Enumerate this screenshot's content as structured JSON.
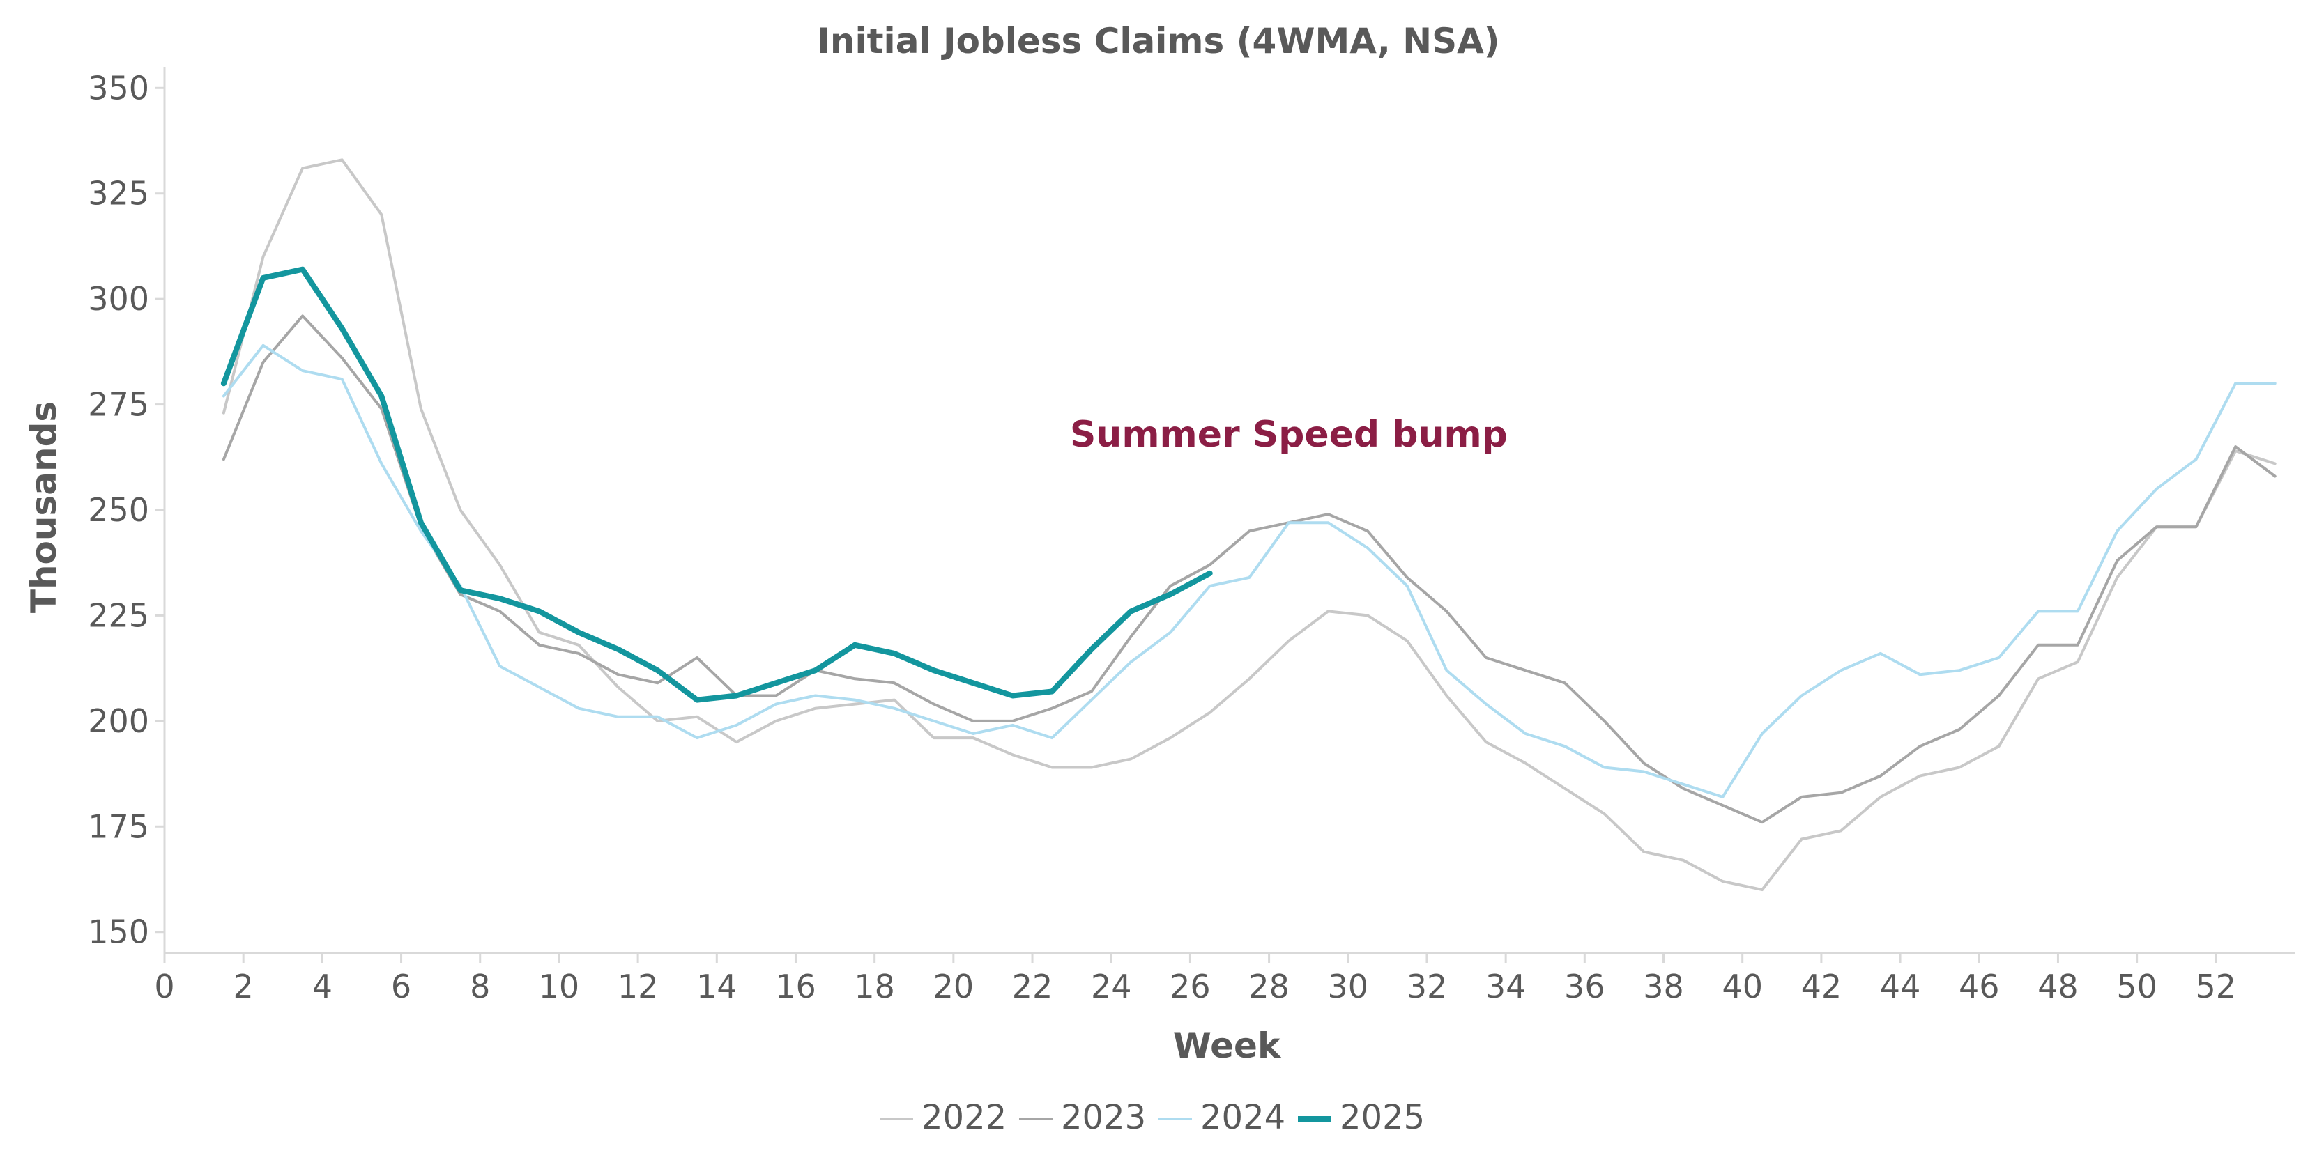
{
  "chart_data": {
    "type": "line",
    "title": "Initial Jobless Claims (4WMA, NSA)",
    "xlabel": "Week",
    "ylabel": "Thousands",
    "xlim": [
      0,
      54
    ],
    "ylim": [
      145,
      355
    ],
    "x_ticks": [
      0,
      2,
      4,
      6,
      8,
      10,
      12,
      14,
      16,
      18,
      20,
      22,
      24,
      26,
      28,
      30,
      32,
      34,
      36,
      38,
      40,
      42,
      44,
      46,
      48,
      50,
      52
    ],
    "y_ticks": [
      150,
      175,
      200,
      225,
      250,
      275,
      300,
      325,
      350
    ],
    "grid": false,
    "legend_position": "bottom-center",
    "annotation": {
      "text": "Summer Speed bump",
      "x": 28.5,
      "y": 265,
      "color": "#8B1E45"
    },
    "series": [
      {
        "name": "2022",
        "color": "#C8C8C8",
        "width": 4,
        "x": [
          1.5,
          2.5,
          3.5,
          4.5,
          5.5,
          6.5,
          7.5,
          8.5,
          9.5,
          10.5,
          11.5,
          12.5,
          13.5,
          14.5,
          15.5,
          16.5,
          17.5,
          18.5,
          19.5,
          20.5,
          21.5,
          22.5,
          23.5,
          24.5,
          25.5,
          26.5,
          27.5,
          28.5,
          29.5,
          30.5,
          31.5,
          32.5,
          33.5,
          34.5,
          35.5,
          36.5,
          37.5,
          38.5,
          39.5,
          40.5,
          41.5,
          42.5,
          43.5,
          44.5,
          45.5,
          46.5,
          47.5,
          48.5,
          49.5,
          50.5,
          51.5,
          52.5,
          53.5
        ],
        "values": [
          273,
          310,
          331,
          333,
          320,
          274,
          250,
          237,
          221,
          218,
          208,
          200,
          201,
          195,
          200,
          203,
          204,
          205,
          196,
          196,
          192,
          189,
          189,
          191,
          196,
          202,
          210,
          219,
          226,
          225,
          219,
          206,
          195,
          190,
          184,
          178,
          169,
          167,
          162,
          160,
          172,
          174,
          182,
          187,
          189,
          194,
          210,
          214,
          234,
          246,
          246,
          264,
          261
        ]
      },
      {
        "name": "2023",
        "color": "#A6A6A6",
        "width": 4,
        "x": [
          1.5,
          2.5,
          3.5,
          4.5,
          5.5,
          6.5,
          7.5,
          8.5,
          9.5,
          10.5,
          11.5,
          12.5,
          13.5,
          14.5,
          15.5,
          16.5,
          17.5,
          18.5,
          19.5,
          20.5,
          21.5,
          22.5,
          23.5,
          24.5,
          25.5,
          26.5,
          27.5,
          28.5,
          29.5,
          30.5,
          31.5,
          32.5,
          33.5,
          34.5,
          35.5,
          36.5,
          37.5,
          38.5,
          39.5,
          40.5,
          41.5,
          42.5,
          43.5,
          44.5,
          45.5,
          46.5,
          47.5,
          48.5,
          49.5,
          50.5,
          51.5,
          52.5,
          53.5
        ],
        "values": [
          262,
          285,
          296,
          286,
          274,
          246,
          230,
          226,
          218,
          216,
          211,
          209,
          215,
          206,
          206,
          212,
          210,
          209,
          204,
          200,
          200,
          203,
          207,
          220,
          232,
          237,
          245,
          247,
          249,
          245,
          234,
          226,
          215,
          212,
          209,
          200,
          190,
          184,
          180,
          176,
          182,
          183,
          187,
          194,
          198,
          206,
          218,
          218,
          238,
          246,
          246,
          265,
          258
        ]
      },
      {
        "name": "2024",
        "color": "#AEDCF0",
        "width": 4,
        "x": [
          1.5,
          2.5,
          3.5,
          4.5,
          5.5,
          6.5,
          7.5,
          8.5,
          9.5,
          10.5,
          11.5,
          12.5,
          13.5,
          14.5,
          15.5,
          16.5,
          17.5,
          18.5,
          19.5,
          20.5,
          21.5,
          22.5,
          23.5,
          24.5,
          25.5,
          26.5,
          27.5,
          28.5,
          29.5,
          30.5,
          31.5,
          32.5,
          33.5,
          34.5,
          35.5,
          36.5,
          37.5,
          38.5,
          39.5,
          40.5,
          41.5,
          42.5,
          43.5,
          44.5,
          45.5,
          46.5,
          47.5,
          48.5,
          49.5,
          50.5,
          51.5,
          52.5,
          53.5
        ],
        "values": [
          277,
          289,
          283,
          281,
          261,
          245,
          232,
          213,
          208,
          203,
          201,
          201,
          196,
          199,
          204,
          206,
          205,
          203,
          200,
          197,
          199,
          196,
          205,
          214,
          221,
          232,
          234,
          247,
          247,
          241,
          232,
          212,
          204,
          197,
          194,
          189,
          188,
          185,
          182,
          197,
          206,
          212,
          216,
          211,
          212,
          215,
          226,
          226,
          245,
          255,
          262,
          280,
          280
        ]
      },
      {
        "name": "2025",
        "color": "#13969E",
        "width": 8,
        "x": [
          1.5,
          2.5,
          3.5,
          4.5,
          5.5,
          6.5,
          7.5,
          8.5,
          9.5,
          10.5,
          11.5,
          12.5,
          13.5,
          14.5,
          15.5,
          16.5,
          17.5,
          18.5,
          19.5,
          20.5,
          21.5,
          22.5,
          23.5,
          24.5,
          25.5,
          26.5
        ],
        "values": [
          280,
          305,
          307,
          293,
          277,
          247,
          231,
          229,
          226,
          221,
          217,
          212,
          205,
          206,
          209,
          212,
          218,
          216,
          212,
          209,
          206,
          207,
          217,
          226,
          230,
          235
        ]
      }
    ]
  }
}
